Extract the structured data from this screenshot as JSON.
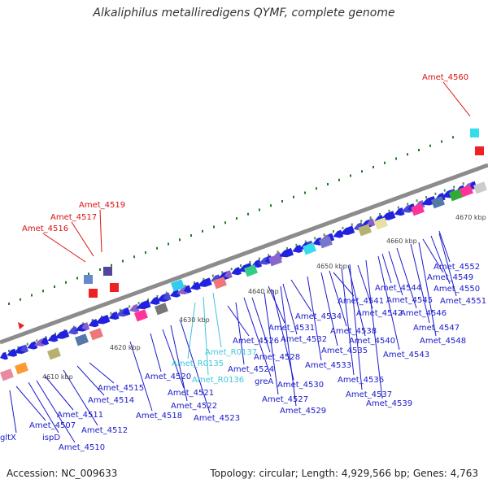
{
  "title": "Alkaliphilus metalliredigens QYMF, complete genome",
  "footer": {
    "accession": "Accession: NC_009633",
    "summary": "Topology: circular; Length: 4,929,566 bp; Genes: 4,763"
  },
  "colors": {
    "backbone": "#8c8c8c",
    "cds": "#1a1adc",
    "label_blue": "#1a1acc",
    "label_cyan": "#3ec7dc",
    "label_red": "#dd1111",
    "tick": "#1e7a1e"
  },
  "kbp_ticks": [
    "4610 kbp",
    "4620 kbp",
    "4630 kbp",
    "4640 kbp",
    "4650 kbp",
    "4660 kbp",
    "4670 kbp"
  ],
  "red_labels": [
    "Amet_4516",
    "Amet_4517",
    "Amet_4519",
    "Amet_4560"
  ],
  "cyan_labels": [
    "Amet_R0135",
    "Amet_R0136",
    "Amet_R0137"
  ],
  "blue_labels": [
    "gltX",
    "Amet_4507",
    "ispD",
    "Amet_4510",
    "Amet_4511",
    "Amet_4512",
    "Amet_4514",
    "Amet_4515",
    "Amet_4518",
    "Amet_4520",
    "Amet_4521",
    "Amet_4522",
    "Amet_4523",
    "Amet_4524",
    "greA",
    "Amet_4526",
    "Amet_4527",
    "Amet_4528",
    "Amet_4529",
    "Amet_4530",
    "Amet_4531",
    "Amet_4532",
    "Amet_4533",
    "Amet_4534",
    "Amet_4535",
    "Amet_4536",
    "Amet_4537",
    "Amet_4538",
    "Amet_4539",
    "Amet_4540",
    "Amet_4541",
    "Amet_4542",
    "Amet_4543",
    "Amet_4544",
    "Amet_4545",
    "Amet_4546",
    "Amet_4547",
    "Amet_4548",
    "Amet_4549",
    "Amet_4550",
    "Amet_4551",
    "Amet_4552"
  ]
}
